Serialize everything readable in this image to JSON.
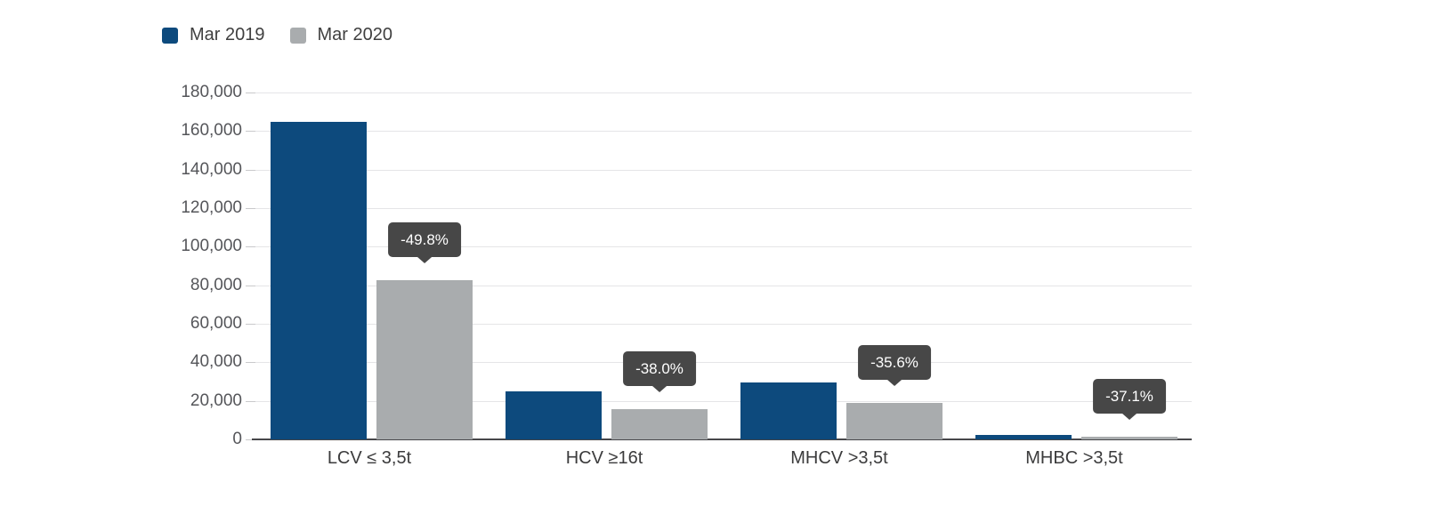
{
  "chart_data": {
    "type": "bar",
    "title": "",
    "xlabel": "",
    "ylabel": "",
    "categories": [
      "LCV ≤ 3,5t",
      "HCV ≥16t",
      "MHCV >3,5t",
      "MHBC >3,5t"
    ],
    "series": [
      {
        "name": "Mar 2019",
        "color": "#0d4a7d",
        "values": [
          165000,
          25000,
          29500,
          2500
        ]
      },
      {
        "name": "Mar 2020",
        "color": "#a9acae",
        "values": [
          82800,
          15500,
          19000,
          1570
        ]
      }
    ],
    "change_labels": [
      "-49.8%",
      "-38.0%",
      "-35.6%",
      "-37.1%"
    ],
    "y_axis": {
      "min": 0,
      "max": 180000,
      "tick_step": 20000,
      "tick_labels": [
        "180,000",
        "160,000",
        "140,000",
        "120,000",
        "100,000",
        "80,000",
        "60,000",
        "40,000",
        "20,000",
        "0"
      ]
    },
    "grid": true,
    "legend_position": "top-left"
  },
  "styles": {
    "tooltip_bg": "#474747",
    "tooltip_text": "#ffffff",
    "grid_color": "#e5e5e7",
    "axis_color": "#47474a",
    "y_label_color": "#55565a",
    "x_label_color": "#3b3b3c"
  }
}
